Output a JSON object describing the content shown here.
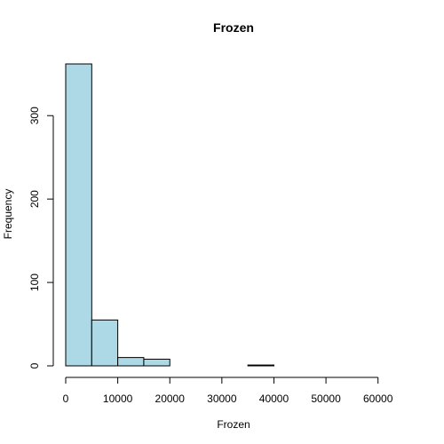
{
  "chart_data": {
    "type": "bar",
    "title": "Frozen",
    "xlabel": "Frozen",
    "ylabel": "Frequency",
    "bar_color": "#add8e6",
    "xlim": [
      0,
      65000
    ],
    "ylim": [
      0,
      362
    ],
    "x_ticks": [
      0,
      10000,
      20000,
      30000,
      40000,
      50000,
      60000
    ],
    "y_ticks": [
      0,
      100,
      200,
      300
    ],
    "bins": [
      {
        "start": 0,
        "end": 5000,
        "count": 362
      },
      {
        "start": 5000,
        "end": 10000,
        "count": 55
      },
      {
        "start": 10000,
        "end": 15000,
        "count": 10
      },
      {
        "start": 15000,
        "end": 20000,
        "count": 8
      },
      {
        "start": 20000,
        "end": 25000,
        "count": 0
      },
      {
        "start": 25000,
        "end": 30000,
        "count": 0
      },
      {
        "start": 30000,
        "end": 35000,
        "count": 0
      },
      {
        "start": 35000,
        "end": 40000,
        "count": 1
      },
      {
        "start": 40000,
        "end": 45000,
        "count": 0
      },
      {
        "start": 45000,
        "end": 50000,
        "count": 0
      },
      {
        "start": 50000,
        "end": 55000,
        "count": 0
      },
      {
        "start": 55000,
        "end": 60000,
        "count": 0
      },
      {
        "start": 60000,
        "end": 65000,
        "count": 0
      }
    ]
  }
}
